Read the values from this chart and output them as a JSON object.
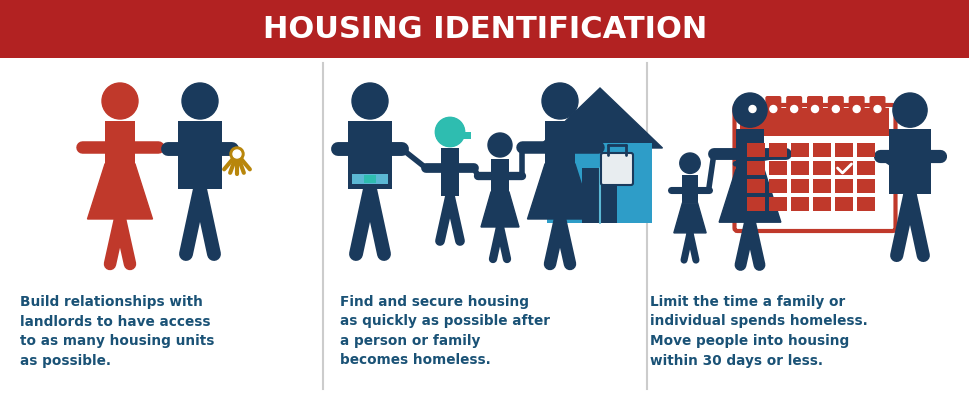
{
  "title": "HOUSING IDENTIFICATION",
  "title_bg_color": "#B22222",
  "title_text_color": "#FFFFFF",
  "bg_color": "#FFFFFF",
  "navy": "#1A3A5C",
  "dark_blue": "#1B4F72",
  "red": "#C0392B",
  "teal": "#2E9DC8",
  "teal_light": "#5BB8D4",
  "cap_teal": "#2EBDB0",
  "gold": "#B8860B",
  "text_color": "#1A5276",
  "texts": [
    "Build relationships with\nlandlords to have access\nto as many housing units\nas possible.",
    "Find and secure housing\nas quickly as possible after\na person or family\nbecomes homeless.",
    "Limit the time a family or\nindividual spends homeless.\nMove people into housing\nwithin 30 days or less."
  ]
}
